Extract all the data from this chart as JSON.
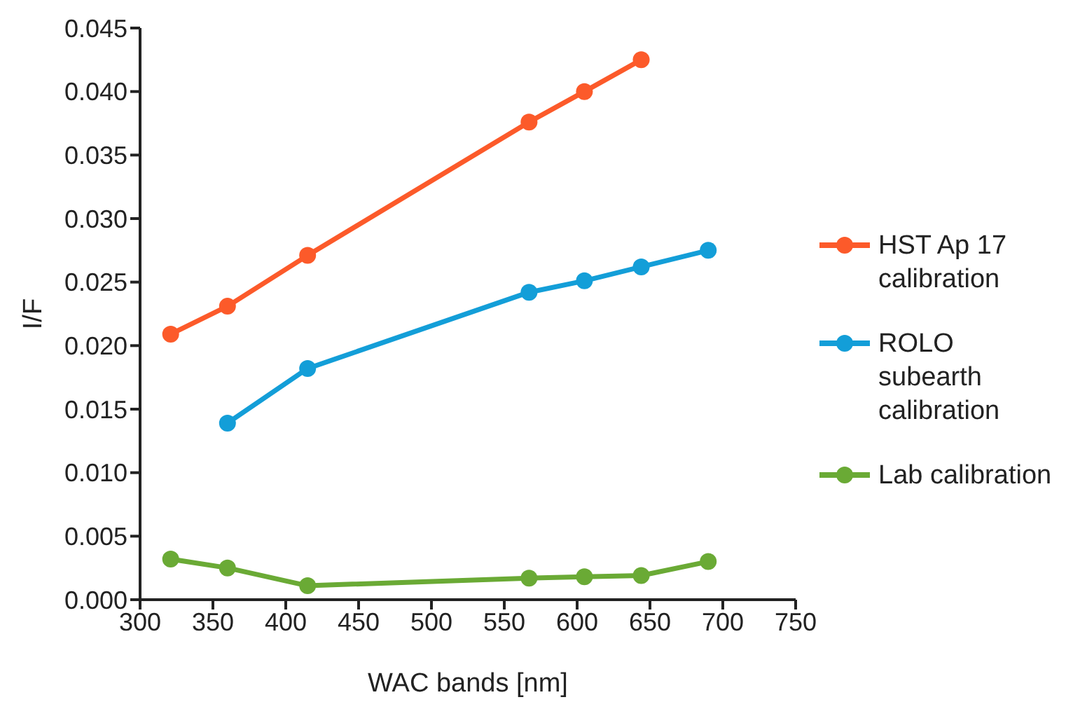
{
  "chart_data": {
    "type": "line",
    "xlabel": "WAC bands [nm]",
    "ylabel": "I/F",
    "xlim": [
      300,
      750
    ],
    "xticks": [
      300,
      350,
      400,
      450,
      500,
      550,
      600,
      650,
      700,
      750
    ],
    "ylim": [
      0,
      0.045
    ],
    "yticks": [
      {
        "value": 0,
        "label": "0.000"
      },
      {
        "value": 0.005,
        "label": "0.005"
      },
      {
        "value": 0.01,
        "label": "0.010"
      },
      {
        "value": 0.015,
        "label": "0.015"
      },
      {
        "value": 0.02,
        "label": "0.020"
      },
      {
        "value": 0.025,
        "label": "0.025"
      },
      {
        "value": 0.03,
        "label": "0.030"
      },
      {
        "value": 0.035,
        "label": "0.035"
      },
      {
        "value": 0.04,
        "label": "0.040"
      },
      {
        "value": 0.045,
        "label": "0.045"
      }
    ],
    "grid": false,
    "legend": "right",
    "marker": "circle",
    "line_style": "solid",
    "series": [
      {
        "name": "HST Ap 17 calibration",
        "color": "#fc5a2a",
        "x": [
          321,
          360,
          415,
          567,
          605,
          644
        ],
        "values": [
          0.0209,
          0.0231,
          0.0271,
          0.0376,
          0.04,
          0.0425
        ]
      },
      {
        "name": "ROLO subearth calibration",
        "color": "#139ed8",
        "x": [
          360,
          415,
          567,
          605,
          644,
          690
        ],
        "values": [
          0.0139,
          0.0182,
          0.0242,
          0.0251,
          0.0262,
          0.0275
        ]
      },
      {
        "name": "Lab calibration",
        "color": "#6aaa35",
        "x": [
          321,
          360,
          415,
          567,
          605,
          644,
          690
        ],
        "values": [
          0.0032,
          0.0025,
          0.0011,
          0.0017,
          0.0018,
          0.0019,
          0.003
        ]
      }
    ]
  }
}
